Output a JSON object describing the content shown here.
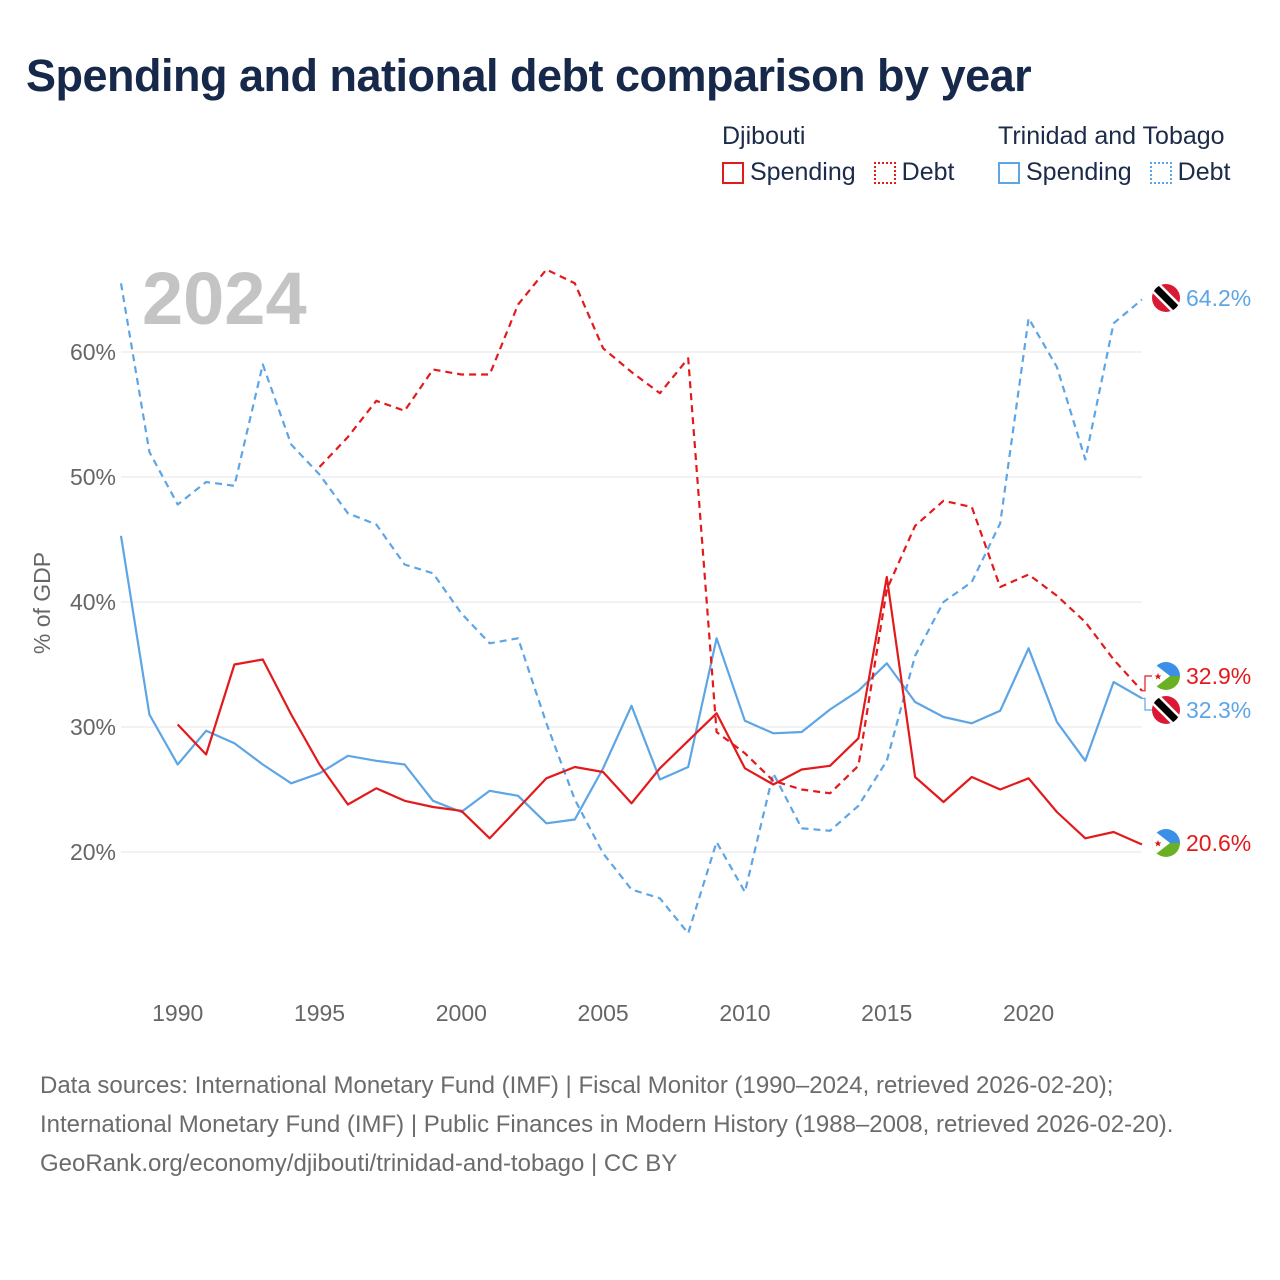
{
  "title": "Spending and national debt comparison by year",
  "legend": {
    "groups": [
      {
        "name": "Djibouti",
        "spending_label": "Spending",
        "debt_label": "Debt"
      },
      {
        "name": "Trinidad and Tobago",
        "spending_label": "Spending",
        "debt_label": "Debt"
      }
    ]
  },
  "colors": {
    "djibouti": "#e31a1c",
    "trinidad": "#5ea5e6",
    "year_watermark": "#c4c4c4",
    "axis_text": "#666666"
  },
  "chart_data": {
    "type": "line",
    "year_watermark": "2024",
    "ylabel": "% of GDP",
    "xlim": [
      1987.5,
      2024.5
    ],
    "ylim": [
      10,
      70
    ],
    "y_ticks": [
      20,
      30,
      40,
      50,
      60
    ],
    "y_tick_labels": [
      "20%",
      "30%",
      "40%",
      "50%",
      "60%"
    ],
    "x_ticks": [
      1990,
      1995,
      2000,
      2005,
      2010,
      2015,
      2020
    ],
    "x_tick_labels": [
      "1990",
      "1995",
      "2000",
      "2005",
      "2010",
      "2015",
      "2020"
    ],
    "series": [
      {
        "name": "Trinidad and Tobago Debt",
        "country": "Trinidad and Tobago",
        "metric": "Debt",
        "style": "dashed",
        "color": "#5ea5e6",
        "x": [
          1988,
          1989,
          1990,
          1991,
          1992,
          1993,
          1994,
          1995,
          1996,
          1997,
          1998,
          1999,
          2000,
          2001,
          2002,
          2003,
          2004,
          2005,
          2006,
          2007,
          2008,
          2009,
          2010,
          2011,
          2012,
          2013,
          2014,
          2015,
          2016,
          2017,
          2018,
          2019,
          2020,
          2021,
          2022,
          2023,
          2024
        ],
        "values": [
          65.5,
          52.0,
          47.8,
          49.6,
          49.3,
          59.0,
          52.6,
          50.2,
          47.1,
          46.2,
          43.0,
          42.3,
          39.1,
          36.7,
          37.1,
          30.3,
          24.2,
          19.9,
          17.0,
          16.3,
          13.5,
          20.8,
          16.8,
          26.3,
          21.9,
          21.7,
          23.7,
          27.3,
          35.7,
          40.0,
          41.6,
          46.3,
          62.7,
          58.8,
          51.4,
          62.3,
          64.2
        ],
        "end_label": "64.2%"
      },
      {
        "name": "Trinidad and Tobago Spending",
        "country": "Trinidad and Tobago",
        "metric": "Spending",
        "style": "solid",
        "color": "#5ea5e6",
        "x": [
          1988,
          1989,
          1990,
          1991,
          1992,
          1993,
          1994,
          1995,
          1996,
          1997,
          1998,
          1999,
          2000,
          2001,
          2002,
          2003,
          2004,
          2005,
          2006,
          2007,
          2008,
          2009,
          2010,
          2011,
          2012,
          2013,
          2014,
          2015,
          2016,
          2017,
          2018,
          2019,
          2020,
          2021,
          2022,
          2023,
          2024
        ],
        "values": [
          45.3,
          31.0,
          27.0,
          29.7,
          28.7,
          27.0,
          25.5,
          26.3,
          27.7,
          27.3,
          27.0,
          24.1,
          23.2,
          24.9,
          24.5,
          22.3,
          22.6,
          26.7,
          31.7,
          25.8,
          26.8,
          37.1,
          30.5,
          29.5,
          29.6,
          31.4,
          32.9,
          35.1,
          32.0,
          30.8,
          30.3,
          31.3,
          36.3,
          30.4,
          27.3,
          33.6,
          32.3
        ],
        "end_label": "32.3%"
      },
      {
        "name": "Djibouti Debt",
        "country": "Djibouti",
        "metric": "Debt",
        "style": "dashed",
        "color": "#e31a1c",
        "x": [
          1995,
          1996,
          1997,
          1998,
          1999,
          2000,
          2001,
          2002,
          2003,
          2004,
          2005,
          2006,
          2007,
          2008,
          2009,
          2010,
          2011,
          2012,
          2013,
          2014,
          2015,
          2016,
          2017,
          2018,
          2019,
          2020,
          2021,
          2022,
          2023,
          2024
        ],
        "values": [
          50.8,
          53.2,
          56.1,
          55.3,
          58.6,
          58.2,
          58.2,
          63.8,
          66.6,
          65.5,
          60.3,
          58.4,
          56.7,
          59.5,
          29.6,
          27.9,
          25.7,
          25.0,
          24.7,
          26.9,
          41.0,
          46.1,
          48.1,
          47.6,
          41.2,
          42.2,
          40.5,
          38.4,
          35.4,
          32.9
        ],
        "end_label": "32.9%"
      },
      {
        "name": "Djibouti Spending",
        "country": "Djibouti",
        "metric": "Spending",
        "style": "solid",
        "color": "#e31a1c",
        "x": [
          1990,
          1991,
          1992,
          1993,
          1994,
          1995,
          1996,
          1997,
          1998,
          1999,
          2000,
          2001,
          2002,
          2003,
          2004,
          2005,
          2006,
          2007,
          2008,
          2009,
          2010,
          2011,
          2012,
          2013,
          2014,
          2015,
          2016,
          2017,
          2018,
          2019,
          2020,
          2021,
          2022,
          2023,
          2024
        ],
        "values": [
          30.2,
          27.8,
          35.0,
          35.4,
          31.0,
          27.0,
          23.8,
          25.1,
          24.1,
          23.6,
          23.3,
          21.1,
          23.5,
          25.9,
          26.8,
          26.4,
          23.9,
          26.7,
          28.9,
          31.1,
          26.7,
          25.4,
          26.6,
          26.9,
          29.1,
          42.0,
          26.0,
          24.0,
          26.0,
          25.0,
          25.9,
          23.2,
          21.1,
          21.6,
          20.6
        ],
        "end_label": "20.6%"
      }
    ]
  },
  "footer": {
    "sources": "Data sources: International Monetary Fund (IMF) | Fiscal Monitor (1990–2024, retrieved 2026-02-20); International Monetary Fund (IMF) | Public Finances in Modern History (1988–2008, retrieved 2026-02-20).",
    "credit": "GeoRank.org/economy/djibouti/trinidad-and-tobago | CC BY"
  }
}
